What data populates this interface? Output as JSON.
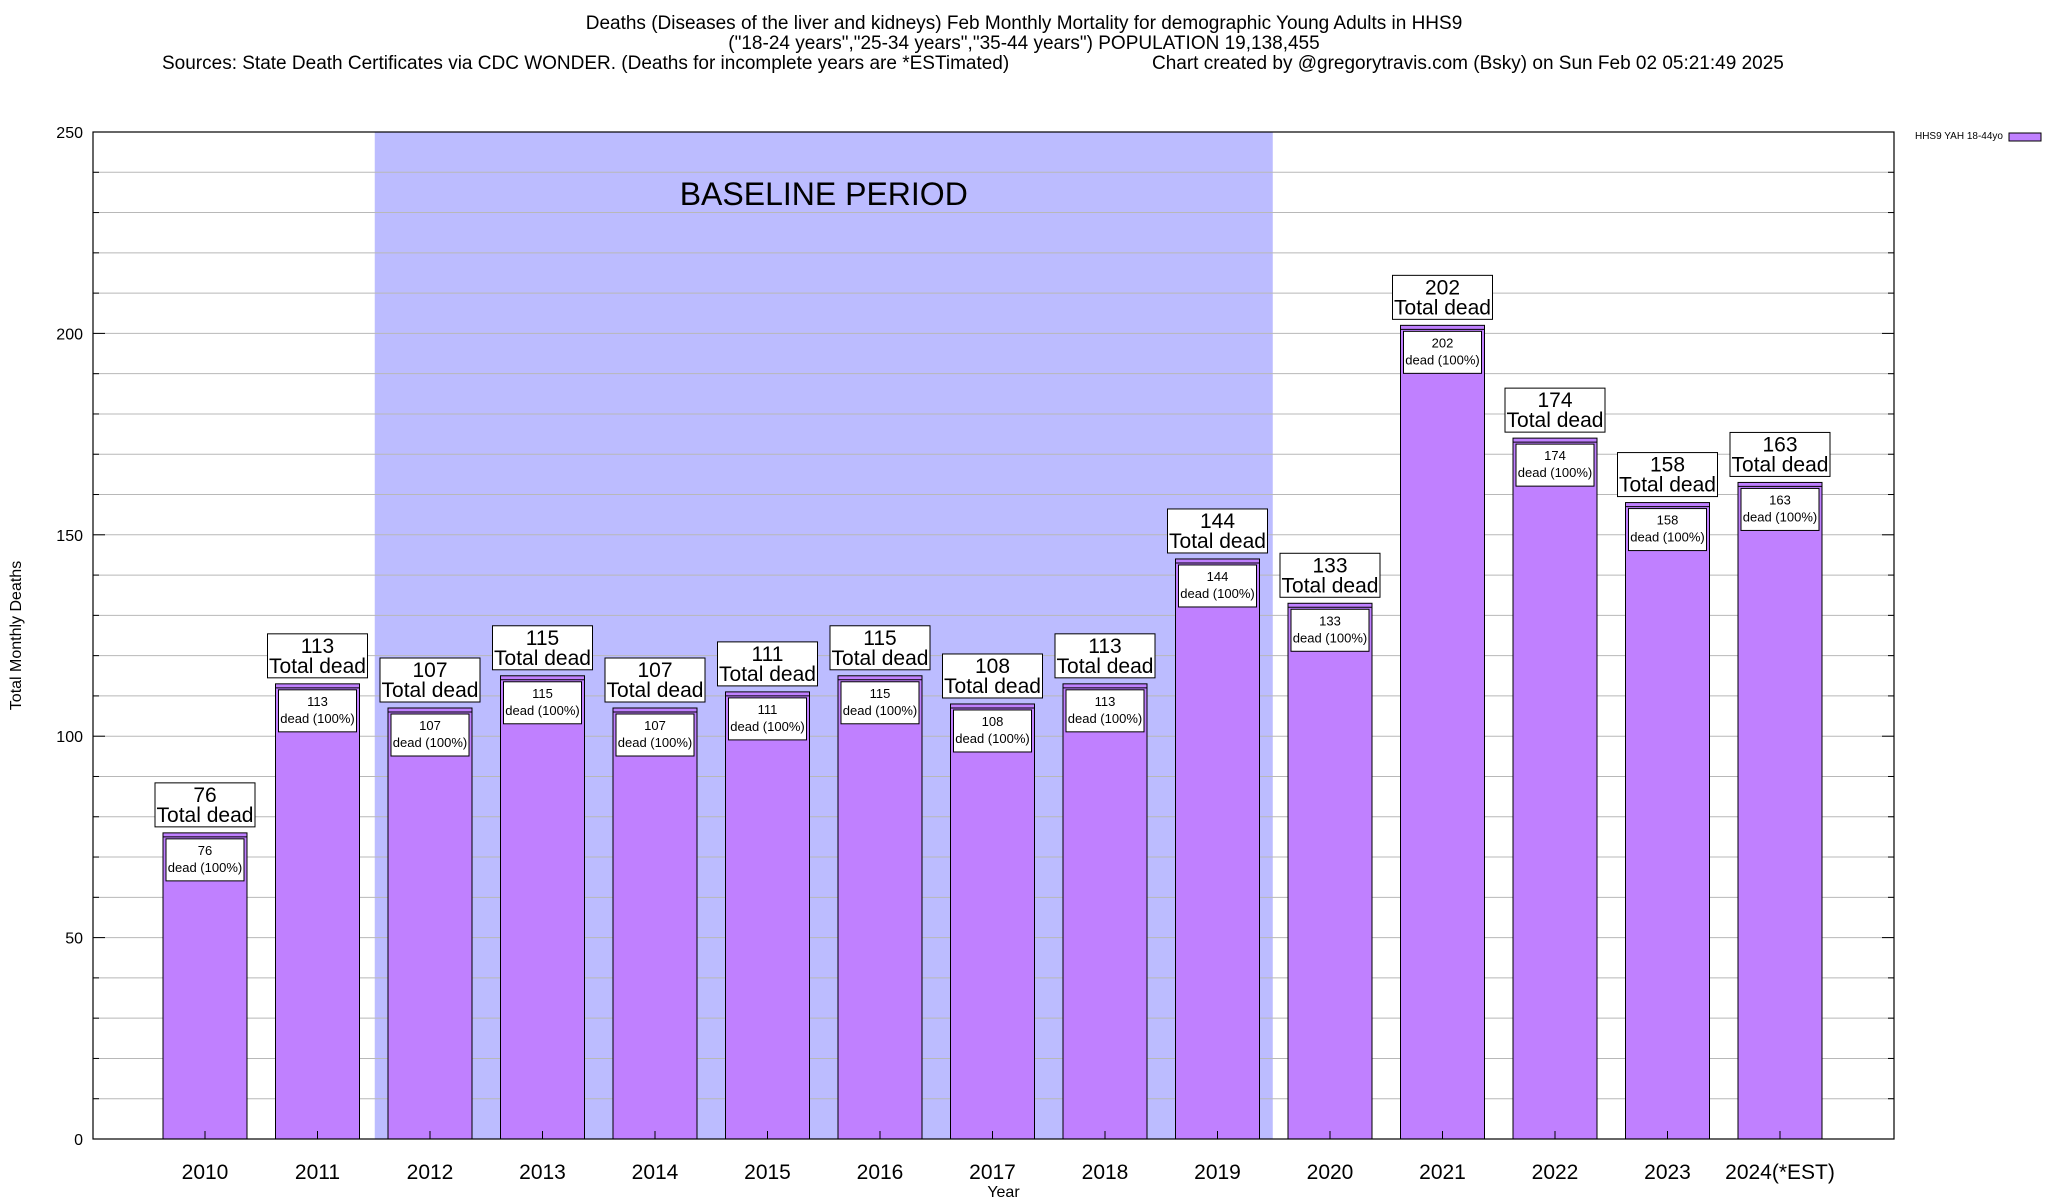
{
  "header": {
    "title_line1": "Deaths (Diseases of the liver and kidneys) Feb Monthly Mortality for demographic Young Adults in HHS9",
    "title_line2": "(\"18-24 years\",\"25-34 years\",\"35-44 years\") POPULATION 19,138,455",
    "sources": "Sources: State Death Certificates via CDC WONDER. (Deaths for incomplete years are *ESTimated)",
    "credit": "Chart created by @gregorytravis.com (Bsky) on Sun Feb 02 05:21:49 2025"
  },
  "chart_data": {
    "type": "bar",
    "title": "Deaths (Diseases of the liver and kidneys) Feb Monthly Mortality for demographic Young Adults in HHS9",
    "xlabel": "Year",
    "ylabel": "Total Monthly Deaths",
    "ylim": [
      0,
      250
    ],
    "yticks": [
      0,
      50,
      100,
      150,
      200,
      250
    ],
    "grid": true,
    "legend_position": "top-right",
    "categories": [
      "2010",
      "2011",
      "2012",
      "2013",
      "2014",
      "2015",
      "2016",
      "2017",
      "2018",
      "2019",
      "2020",
      "2021",
      "2022",
      "2023",
      "2024(*EST)"
    ],
    "series": [
      {
        "name": "HHS9 YAH 18-44yo",
        "color": "#c080ff",
        "values": [
          76,
          113,
          107,
          115,
          107,
          111,
          115,
          108,
          113,
          144,
          133,
          202,
          174,
          158,
          163
        ]
      }
    ],
    "total_label_suffix": "Total dead",
    "inner_label_suffix": "dead (100%)",
    "baseline": {
      "label": "BASELINE PERIOD",
      "from": "2012",
      "to": "2019",
      "color": "#bcbcff"
    }
  }
}
